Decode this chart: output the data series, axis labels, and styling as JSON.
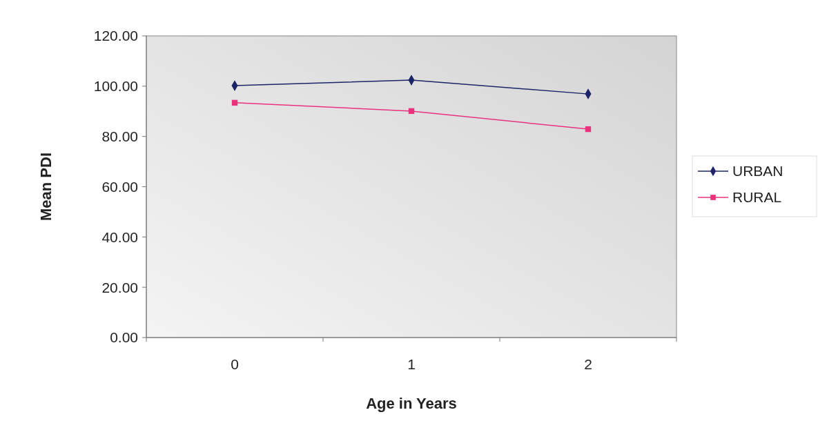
{
  "chart_data": {
    "type": "line",
    "xlabel": "Age in Years",
    "ylabel": "Mean PDI",
    "categories": [
      "0",
      "1",
      "2"
    ],
    "series": [
      {
        "name": "URBAN",
        "color": "#1c2366",
        "values": [
          100.2,
          102.4,
          96.9
        ],
        "marker": "diamond"
      },
      {
        "name": "RURAL",
        "color": "#e8337c",
        "values": [
          93.4,
          90.1,
          82.9
        ],
        "marker": "square"
      }
    ],
    "ylim": [
      0,
      120
    ],
    "yticks": [
      {
        "value": 0,
        "label": "0.00"
      },
      {
        "value": 20,
        "label": "20.00"
      },
      {
        "value": 40,
        "label": "40.00"
      },
      {
        "value": 60,
        "label": "60.00"
      },
      {
        "value": 80,
        "label": "80.00"
      },
      {
        "value": 100,
        "label": "100.00"
      },
      {
        "value": 120,
        "label": "120.00"
      }
    ],
    "grid": false,
    "legend": "right"
  }
}
